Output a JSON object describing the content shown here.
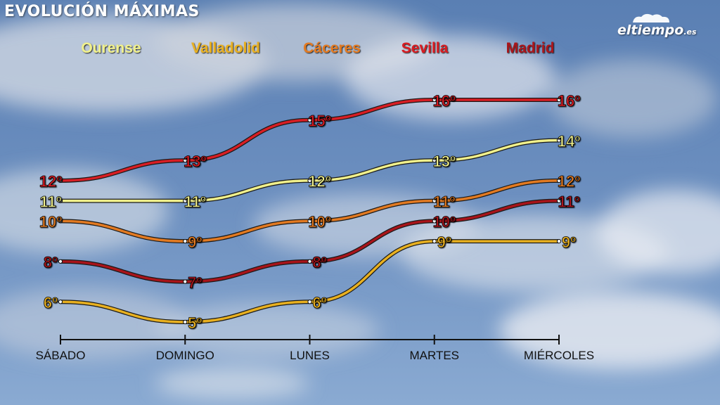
{
  "title": "EVOLUCIÓN MÁXIMAS",
  "logo": {
    "name": "eltiempo",
    "suffix": ".es"
  },
  "chart_data": {
    "type": "line",
    "title": "EVOLUCIÓN MÁXIMAS",
    "x": [
      "SÁBADO",
      "DOMINGO",
      "LUNES",
      "MARTES",
      "MIÉRCOLES"
    ],
    "unit": "º",
    "ylim": [
      5,
      16
    ],
    "grid": false,
    "legend_position": "top",
    "series": [
      {
        "name": "Ourense",
        "color": "#f0f08c",
        "values": [
          11,
          11,
          12,
          13,
          14
        ]
      },
      {
        "name": "Valladolid",
        "color": "#e8b020",
        "values": [
          6,
          5,
          6,
          9,
          9
        ]
      },
      {
        "name": "Cáceres",
        "color": "#e27a22",
        "values": [
          10,
          9,
          10,
          11,
          12
        ]
      },
      {
        "name": "Sevilla",
        "color": "#d81e24",
        "values": [
          12,
          13,
          15,
          16,
          16
        ]
      },
      {
        "name": "Madrid",
        "color": "#a8141a",
        "values": [
          8,
          7,
          8,
          10,
          11
        ]
      }
    ]
  }
}
